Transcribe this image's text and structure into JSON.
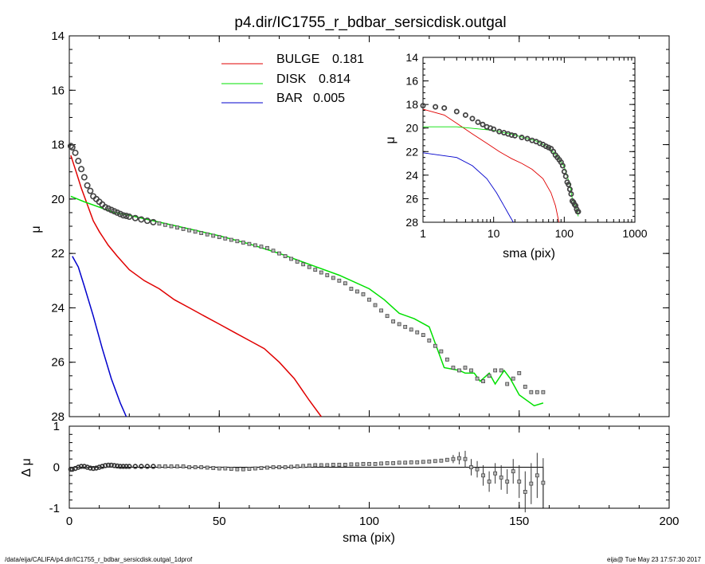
{
  "title": "p4.dir/IC1755_r_bdbar_sersicdisk.outgal",
  "footer": {
    "left": "/data/eija/CALIFA/p4.dir/IC1755_r_bdbar_sersicdisk.outgal_1dprof",
    "right": "eija@  Tue May 23 17:57:30 2017"
  },
  "colors": {
    "bulge": "#e00000",
    "disk": "#00e000",
    "bar": "#0000cc",
    "data": "#555555"
  },
  "legend": [
    {
      "name": "BULGE",
      "value": "0.181",
      "color": "#e00000"
    },
    {
      "name": "DISK",
      "value": "0.814",
      "color": "#00e000"
    },
    {
      "name": "BAR",
      "value": "0.005",
      "color": "#0000cc"
    }
  ],
  "chart_data": [
    {
      "id": "main",
      "type": "line",
      "xlabel": "sma (pix)",
      "ylabel": "μ",
      "xlim": [
        0,
        200
      ],
      "ylim": [
        28,
        14
      ],
      "xticks": [
        0,
        50,
        100,
        150,
        200
      ],
      "yticks": [
        14,
        16,
        18,
        20,
        22,
        24,
        26,
        28
      ],
      "series": [
        {
          "name": "BULGE",
          "color": "#e00000",
          "points": [
            [
              0.5,
              18.4
            ],
            [
              2,
              18.9
            ],
            [
              4,
              19.6
            ],
            [
              6,
              20.2
            ],
            [
              8,
              20.8
            ],
            [
              10,
              21.2
            ],
            [
              13,
              21.7
            ],
            [
              16,
              22.1
            ],
            [
              20,
              22.6
            ],
            [
              25,
              23.0
            ],
            [
              30,
              23.3
            ],
            [
              35,
              23.7
            ],
            [
              40,
              24.0
            ],
            [
              45,
              24.3
            ],
            [
              50,
              24.6
            ],
            [
              55,
              24.9
            ],
            [
              60,
              25.2
            ],
            [
              65,
              25.5
            ],
            [
              70,
              26.0
            ],
            [
              75,
              26.6
            ],
            [
              80,
              27.4
            ],
            [
              84,
              28.0
            ]
          ]
        },
        {
          "name": "DISK",
          "color": "#00e000",
          "points": [
            [
              0.5,
              19.9
            ],
            [
              5,
              20.1
            ],
            [
              10,
              20.3
            ],
            [
              15,
              20.5
            ],
            [
              20,
              20.6
            ],
            [
              30,
              20.85
            ],
            [
              40,
              21.1
            ],
            [
              50,
              21.35
            ],
            [
              60,
              21.65
            ],
            [
              70,
              22.0
            ],
            [
              80,
              22.4
            ],
            [
              90,
              22.8
            ],
            [
              100,
              23.3
            ],
            [
              105,
              23.7
            ],
            [
              110,
              24.2
            ],
            [
              115,
              24.4
            ],
            [
              120,
              24.7
            ],
            [
              122,
              25.3
            ],
            [
              125,
              26.2
            ],
            [
              130,
              26.3
            ],
            [
              132,
              26.4
            ],
            [
              135,
              26.4
            ],
            [
              137,
              26.7
            ],
            [
              140,
              26.4
            ],
            [
              142,
              26.8
            ],
            [
              145,
              26.3
            ],
            [
              147,
              26.6
            ],
            [
              150,
              27.2
            ],
            [
              155,
              27.6
            ],
            [
              158,
              27.5
            ]
          ]
        },
        {
          "name": "BAR",
          "color": "#0000cc",
          "points": [
            [
              1,
              22.1
            ],
            [
              3,
              22.5
            ],
            [
              5,
              23.2
            ],
            [
              8,
              24.3
            ],
            [
              11,
              25.5
            ],
            [
              14,
              26.6
            ],
            [
              17,
              27.5
            ],
            [
              19,
              28.0
            ]
          ]
        }
      ],
      "data_points": {
        "name": "data",
        "x": [
          0.5,
          1,
          2,
          3,
          4,
          5,
          6,
          7,
          8,
          9,
          10,
          11,
          12,
          13,
          14,
          15,
          16,
          17,
          18,
          19,
          20,
          22,
          24,
          26,
          28,
          30,
          32,
          34,
          36,
          38,
          40,
          42,
          44,
          46,
          48,
          50,
          52,
          54,
          56,
          58,
          60,
          62,
          64,
          66,
          68,
          70,
          72,
          74,
          76,
          78,
          80,
          82,
          84,
          86,
          88,
          90,
          92,
          94,
          96,
          98,
          100,
          102,
          104,
          106,
          108,
          110,
          112,
          114,
          116,
          118,
          120,
          122,
          124,
          126,
          128,
          130,
          132,
          134,
          136,
          138,
          140,
          142,
          144,
          146,
          148,
          150,
          152,
          154,
          156,
          158
        ],
        "y": [
          18.05,
          18.1,
          18.3,
          18.6,
          18.9,
          19.2,
          19.5,
          19.7,
          19.9,
          20.0,
          20.1,
          20.2,
          20.3,
          20.35,
          20.4,
          20.45,
          20.5,
          20.55,
          20.6,
          20.62,
          20.65,
          20.7,
          20.75,
          20.8,
          20.85,
          20.9,
          20.95,
          21.0,
          21.05,
          21.1,
          21.15,
          21.2,
          21.25,
          21.3,
          21.35,
          21.4,
          21.45,
          21.5,
          21.55,
          21.6,
          21.65,
          21.7,
          21.75,
          21.8,
          21.9,
          22.0,
          22.1,
          22.2,
          22.3,
          22.4,
          22.5,
          22.6,
          22.7,
          22.8,
          22.9,
          23.0,
          23.1,
          23.3,
          23.4,
          23.5,
          23.7,
          23.9,
          24.1,
          24.3,
          24.5,
          24.6,
          24.7,
          24.8,
          24.9,
          25.0,
          25.2,
          25.4,
          25.6,
          25.9,
          26.2,
          26.3,
          26.2,
          26.3,
          26.6,
          26.7,
          26.5,
          26.3,
          26.3,
          26.8,
          26.6,
          26.4,
          26.9,
          27.1,
          27.1,
          27.1
        ]
      }
    },
    {
      "id": "residual",
      "type": "scatter",
      "xlabel": "sma (pix)",
      "ylabel": "Δ μ",
      "xlim": [
        0,
        200
      ],
      "ylim": [
        -1,
        1
      ],
      "xticks": [
        0,
        50,
        100,
        150,
        200
      ],
      "yticks": [
        -1,
        0,
        1
      ],
      "data_points": {
        "x": [
          0.5,
          1,
          2,
          3,
          4,
          5,
          6,
          7,
          8,
          9,
          10,
          11,
          12,
          13,
          14,
          15,
          16,
          17,
          18,
          19,
          20,
          22,
          24,
          26,
          28,
          30,
          32,
          34,
          36,
          38,
          40,
          42,
          44,
          46,
          48,
          50,
          52,
          54,
          56,
          58,
          60,
          62,
          64,
          66,
          68,
          70,
          72,
          74,
          76,
          78,
          80,
          82,
          84,
          86,
          88,
          90,
          92,
          94,
          96,
          98,
          100,
          102,
          104,
          106,
          108,
          110,
          112,
          114,
          116,
          118,
          120,
          122,
          124,
          126,
          128,
          130,
          132,
          134,
          136,
          138,
          140,
          142,
          144,
          146,
          148,
          150,
          152,
          154,
          156,
          158
        ],
        "y": [
          -0.05,
          -0.05,
          -0.03,
          0.0,
          0.02,
          0.02,
          0.0,
          -0.02,
          -0.03,
          -0.02,
          0.0,
          0.02,
          0.04,
          0.05,
          0.05,
          0.04,
          0.03,
          0.02,
          0.02,
          0.02,
          0.02,
          0.02,
          0.02,
          0.02,
          0.02,
          0.02,
          0.02,
          0.02,
          0.02,
          0.02,
          0.0,
          0.0,
          0.0,
          -0.01,
          -0.02,
          -0.03,
          -0.03,
          -0.04,
          -0.05,
          -0.05,
          -0.04,
          -0.03,
          -0.02,
          -0.01,
          0.0,
          0.0,
          0.0,
          0.01,
          0.02,
          0.03,
          0.04,
          0.05,
          0.05,
          0.05,
          0.06,
          0.06,
          0.06,
          0.07,
          0.07,
          0.08,
          0.08,
          0.08,
          0.09,
          0.1,
          0.1,
          0.11,
          0.11,
          0.12,
          0.12,
          0.13,
          0.14,
          0.15,
          0.16,
          0.18,
          0.2,
          0.22,
          0.2,
          0.0,
          -0.05,
          -0.2,
          -0.35,
          -0.15,
          -0.25,
          -0.35,
          -0.1,
          -0.35,
          -0.6,
          -0.4,
          -0.2,
          -0.38
        ],
        "err": [
          0,
          0,
          0,
          0,
          0,
          0,
          0,
          0,
          0,
          0,
          0,
          0,
          0,
          0,
          0,
          0,
          0,
          0,
          0,
          0,
          0,
          0,
          0,
          0,
          0,
          0,
          0,
          0,
          0,
          0,
          0,
          0,
          0,
          0,
          0,
          0,
          0,
          0,
          0,
          0,
          0,
          0,
          0,
          0,
          0,
          0,
          0,
          0,
          0,
          0,
          0,
          0,
          0,
          0,
          0,
          0,
          0,
          0,
          0,
          0,
          0,
          0,
          0,
          0,
          0,
          0,
          0,
          0,
          0,
          0,
          0,
          0,
          0,
          0,
          0.1,
          0.15,
          0.2,
          0.2,
          0.2,
          0.25,
          0.25,
          0.25,
          0.3,
          0.3,
          0.3,
          0.4,
          0.5,
          0.5,
          0.55,
          0.6
        ]
      },
      "zero_line": {
        "x": [
          0,
          158
        ],
        "y": [
          0,
          0
        ]
      }
    },
    {
      "id": "inset",
      "type": "line",
      "xlabel": "sma (pix)",
      "ylabel": "μ",
      "xscale": "log",
      "xlim": [
        1,
        1000
      ],
      "ylim": [
        28,
        14
      ],
      "xticks": [
        1,
        10,
        100,
        1000
      ],
      "yticks": [
        14,
        16,
        18,
        20,
        22,
        24,
        26,
        28
      ],
      "series": [
        {
          "name": "BULGE",
          "color": "#e00000",
          "points": [
            [
              1,
              18.4
            ],
            [
              2,
              18.9
            ],
            [
              3,
              19.6
            ],
            [
              5,
              20.5
            ],
            [
              8,
              21.3
            ],
            [
              12,
              22.0
            ],
            [
              18,
              22.6
            ],
            [
              25,
              23.0
            ],
            [
              35,
              23.5
            ],
            [
              50,
              24.3
            ],
            [
              65,
              25.5
            ],
            [
              75,
              26.6
            ],
            [
              84,
              28.0
            ]
          ]
        },
        {
          "name": "DISK",
          "color": "#00e000",
          "points": [
            [
              1,
              19.9
            ],
            [
              3,
              19.9
            ],
            [
              10,
              20.2
            ],
            [
              20,
              20.6
            ],
            [
              40,
              21.1
            ],
            [
              60,
              21.65
            ],
            [
              80,
              22.4
            ],
            [
              100,
              23.3
            ],
            [
              120,
              24.8
            ],
            [
              130,
              26.0
            ],
            [
              150,
              26.8
            ],
            [
              158,
              27.5
            ]
          ]
        },
        {
          "name": "BAR",
          "color": "#0000cc",
          "points": [
            [
              1,
              22.1
            ],
            [
              3,
              22.5
            ],
            [
              5,
              23.2
            ],
            [
              8,
              24.3
            ],
            [
              11,
              25.5
            ],
            [
              14,
              26.6
            ],
            [
              17,
              27.5
            ],
            [
              19,
              28.0
            ]
          ]
        }
      ],
      "data_points": {
        "x": [
          1,
          1.5,
          2,
          3,
          4,
          5,
          6,
          7,
          8,
          9,
          10,
          12,
          14,
          16,
          18,
          20,
          25,
          30,
          35,
          40,
          45,
          50,
          55,
          60,
          65,
          70,
          75,
          80,
          85,
          90,
          95,
          100,
          105,
          110,
          115,
          120,
          125,
          130,
          135,
          140,
          145,
          150,
          155,
          158
        ],
        "y": [
          18.1,
          18.2,
          18.3,
          18.6,
          18.9,
          19.2,
          19.5,
          19.7,
          19.9,
          20.0,
          20.1,
          20.3,
          20.4,
          20.5,
          20.6,
          20.65,
          20.8,
          20.9,
          21.05,
          21.15,
          21.3,
          21.4,
          21.55,
          21.65,
          21.75,
          22.0,
          22.3,
          22.5,
          22.7,
          22.9,
          23.2,
          23.7,
          24.1,
          24.6,
          24.8,
          25.2,
          25.6,
          26.2,
          26.3,
          26.5,
          26.6,
          26.9,
          27.1,
          27.1
        ]
      }
    }
  ]
}
